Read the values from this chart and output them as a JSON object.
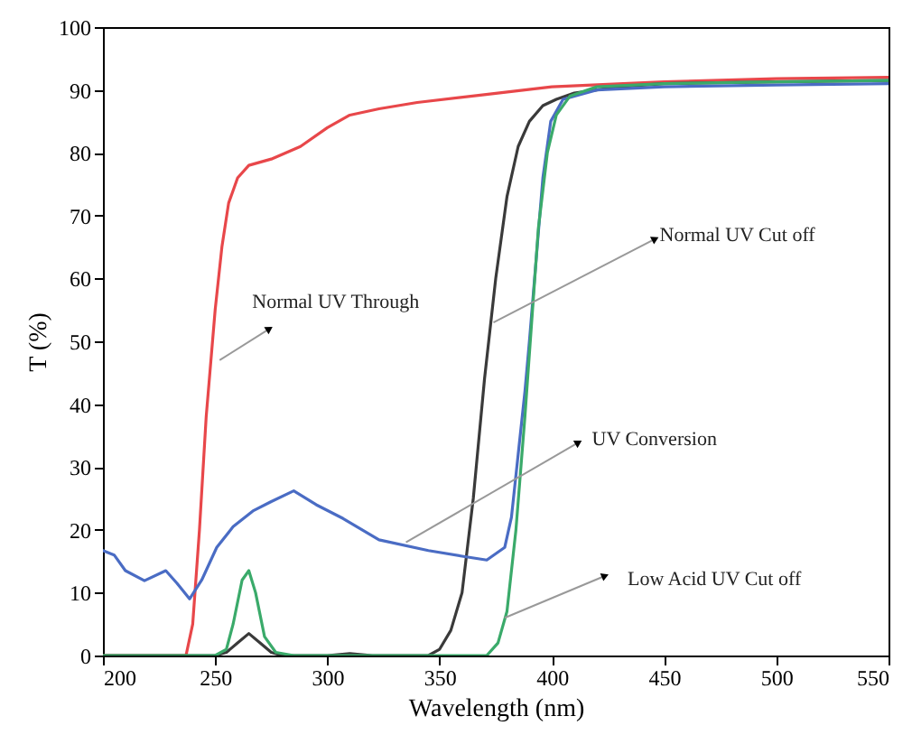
{
  "chart_data": {
    "type": "line",
    "xlabel": "Wavelength (nm)",
    "ylabel": "T (%)",
    "xlim": [
      200,
      550
    ],
    "xticks": [
      200,
      250,
      300,
      350,
      400,
      450,
      500,
      550
    ],
    "ylim": [
      0,
      100
    ],
    "yticks": [
      0,
      10,
      20,
      30,
      40,
      50,
      60,
      70,
      80,
      90,
      100
    ],
    "grid": false,
    "marker": "none",
    "line_style": "solid",
    "series": [
      {
        "color": "#e8474a",
        "x": [
          200,
          230,
          237,
          240,
          243,
          246,
          250,
          253,
          256,
          260,
          265,
          275,
          288,
          300,
          310,
          323,
          340,
          369,
          400,
          450,
          500,
          550
        ],
        "values": [
          0,
          0,
          0,
          5,
          20,
          38,
          55,
          65,
          72,
          76,
          78,
          79,
          81,
          84,
          86,
          87,
          88,
          89.2,
          90.5,
          91.3,
          91.8,
          92
        ]
      },
      {
        "color": "#3a3a3a",
        "x": [
          200,
          250,
          255,
          260,
          265,
          270,
          275,
          280,
          300,
          310,
          320,
          345,
          350,
          355,
          360,
          365,
          370,
          375,
          380,
          385,
          390,
          396,
          402,
          410,
          430,
          450,
          500,
          550
        ],
        "values": [
          0,
          0,
          0.5,
          2,
          3.5,
          2,
          0.5,
          0,
          0,
          0.3,
          0,
          0,
          1,
          4,
          10,
          25,
          44,
          60,
          73,
          81,
          85,
          87.5,
          88.5,
          89.5,
          90.5,
          91,
          91.3,
          91.5
        ]
      },
      {
        "color": "#4a6cc4",
        "x": [
          200,
          205,
          210,
          218.5,
          228,
          233,
          238.6,
          244,
          250.7,
          258,
          266.8,
          275,
          285,
          295,
          307,
          323,
          345,
          360,
          371,
          379,
          382,
          385,
          388,
          390,
          393,
          396,
          399.5,
          405,
          420,
          450,
          500,
          550
        ],
        "values": [
          16.7,
          16,
          13.5,
          11.9,
          13.5,
          11.5,
          9,
          12,
          17.2,
          20.5,
          23,
          24.5,
          26.2,
          24,
          21.8,
          18.4,
          16.7,
          15.8,
          15.2,
          17.2,
          22,
          32,
          42,
          50,
          63,
          76,
          85,
          88.5,
          90,
          90.5,
          90.8,
          91
        ]
      },
      {
        "color": "#3aaa6a",
        "x": [
          200,
          250,
          255,
          258,
          262,
          265,
          268,
          272,
          277,
          285,
          371,
          376,
          380,
          384,
          388,
          391,
          394,
          398,
          402,
          408,
          420,
          450,
          500,
          550
        ],
        "values": [
          0,
          0,
          1,
          5,
          12,
          13.5,
          10,
          3,
          0.5,
          0,
          0,
          2,
          7,
          20,
          38,
          53,
          68,
          80,
          86,
          89,
          90.5,
          91,
          91.3,
          91.5
        ]
      }
    ],
    "annotations": [
      {
        "text": "Normal UV Through",
        "x": 252,
        "y": 47
      },
      {
        "text": "Normal UV Cut off",
        "x": 374,
        "y": 53
      },
      {
        "text": "UV Conversion",
        "x": 335,
        "y": 18
      },
      {
        "text": "Low Acid UV Cut off",
        "x": 379,
        "y": 6
      }
    ]
  }
}
